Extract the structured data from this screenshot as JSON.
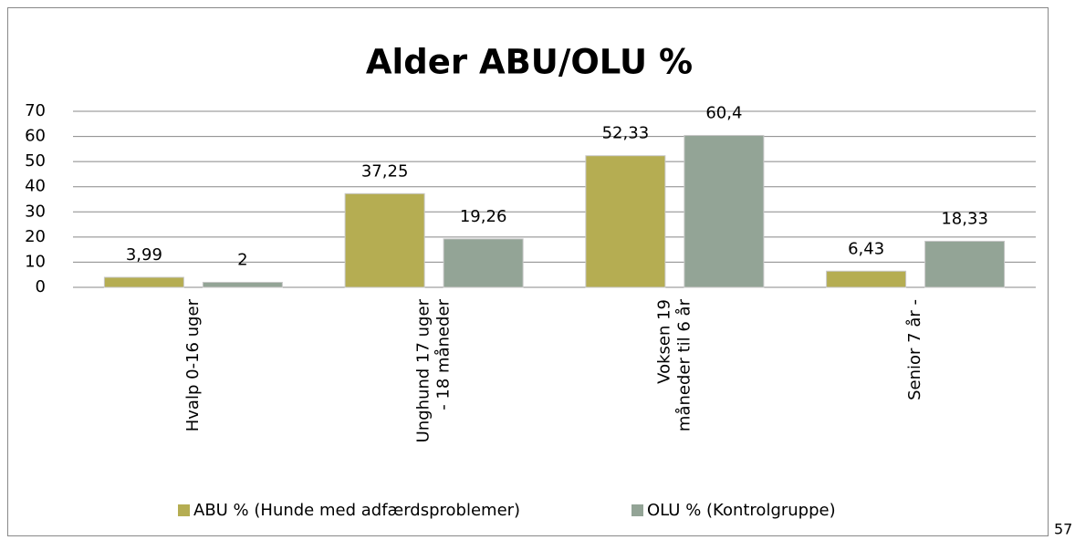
{
  "chart_data": {
    "type": "bar",
    "title": "Alder ABU/OLU %",
    "categories": [
      "Hvalp 0-16 uger",
      "Unghund 17 uger\n- 18 måneder",
      "Voksen 19\nmåneder til 6 år",
      "Senior 7 år -"
    ],
    "series": [
      {
        "name": "ABU % (Hunde med adfærdsproblemer)",
        "color": "#b5ad52",
        "values": [
          3.99,
          37.25,
          52.33,
          6.43
        ],
        "value_labels": [
          "3,99",
          "37,25",
          "52,33",
          "6,43"
        ]
      },
      {
        "name": "OLU % (Kontrolgruppe)",
        "color": "#93a496",
        "values": [
          2,
          19.26,
          60.4,
          18.33
        ],
        "value_labels": [
          "2",
          "19,26",
          "60,4",
          "18,33"
        ]
      }
    ],
    "ylim": [
      0,
      70
    ],
    "yticks": [
      0,
      10,
      20,
      30,
      40,
      50,
      60,
      70
    ],
    "grid": true,
    "legend": "bottom"
  },
  "page_number": "57"
}
